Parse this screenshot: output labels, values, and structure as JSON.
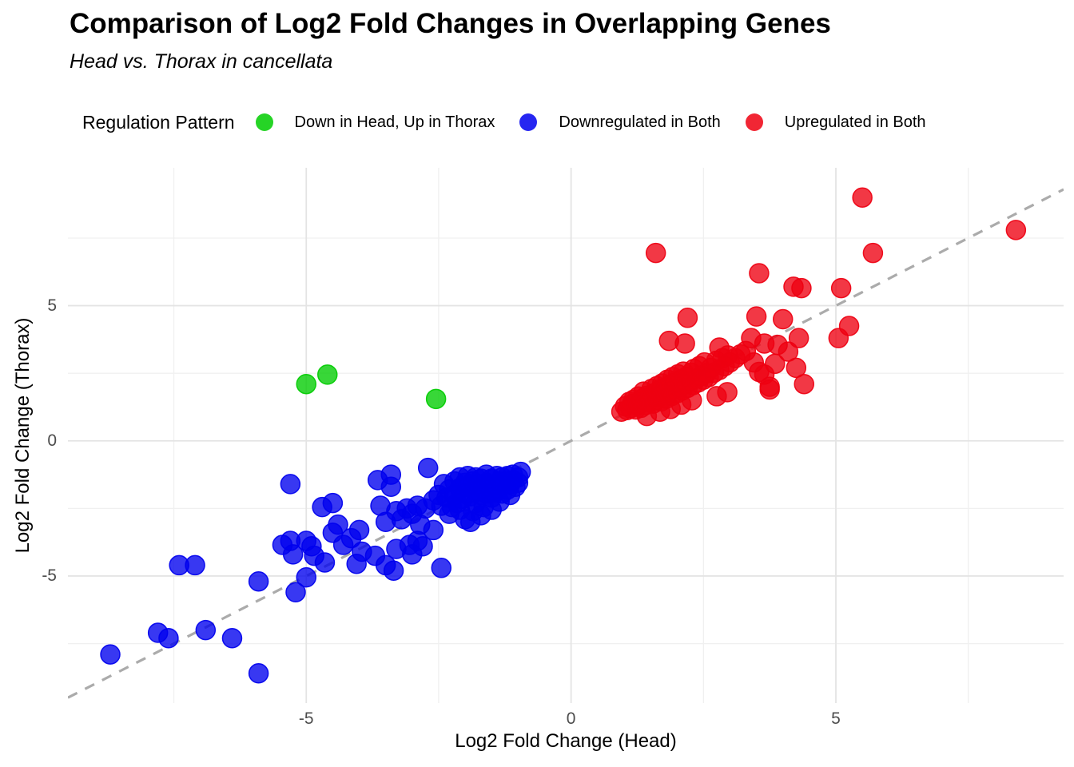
{
  "chart_data": {
    "type": "scatter",
    "title": "Comparison of Log2 Fold Changes in Overlapping Genes",
    "subtitle": "Head vs. Thorax in cancellata",
    "legend_title": "Regulation Pattern",
    "legend_position": "top",
    "grid": "on",
    "background": "#FFFFFF",
    "x_axis": {
      "title": "Log2 Fold Change (Head)",
      "range": [
        -9.5,
        9.3
      ],
      "ticks": [
        {
          "value": -5,
          "label": "-5"
        },
        {
          "value": 0,
          "label": "0"
        },
        {
          "value": 5,
          "label": "5"
        }
      ],
      "minor_gridlines": [
        -7.5,
        -2.5,
        2.5,
        7.5
      ]
    },
    "y_axis": {
      "title": "Log2 Fold Change (Thorax)",
      "range": [
        -9.7,
        10.1
      ],
      "ticks": [
        {
          "value": 5,
          "label": "5"
        },
        {
          "value": 0,
          "label": "0"
        },
        {
          "value": -5,
          "label": "-5"
        }
      ],
      "minor_gridlines": [
        -7.5,
        -2.5,
        2.5,
        7.5
      ]
    },
    "reference_line": {
      "type": "identity y=x",
      "style": "dashed",
      "color": "#ABABAB"
    },
    "point_radius": 12,
    "series": [
      {
        "id": "green",
        "name": "Down in Head, Up in Thorax",
        "color": "#00CC00",
        "points": [
          [
            -5.0,
            2.1
          ],
          [
            -4.6,
            2.45
          ],
          [
            -2.55,
            1.55
          ]
        ]
      },
      {
        "id": "blue",
        "name": "Downregulated in Both",
        "color": "#0000EE",
        "points": [
          [
            -8.7,
            -7.9
          ],
          [
            -7.8,
            -7.1
          ],
          [
            -7.6,
            -7.3
          ],
          [
            -6.9,
            -7.0
          ],
          [
            -6.4,
            -7.3
          ],
          [
            -7.4,
            -4.6
          ],
          [
            -7.1,
            -4.6
          ],
          [
            -5.9,
            -5.2
          ],
          [
            -5.9,
            -8.6
          ],
          [
            -5.3,
            -1.6
          ],
          [
            -5.2,
            -5.6
          ],
          [
            -5.0,
            -5.05
          ],
          [
            -2.45,
            -4.7
          ],
          [
            -5.45,
            -3.85
          ],
          [
            -5.3,
            -3.7
          ],
          [
            -5.25,
            -4.2
          ],
          [
            -5.0,
            -3.7
          ],
          [
            -4.9,
            -3.9
          ],
          [
            -4.85,
            -4.25
          ],
          [
            -4.65,
            -4.5
          ],
          [
            -4.7,
            -2.45
          ],
          [
            -4.5,
            -2.3
          ],
          [
            -4.4,
            -3.1
          ],
          [
            -4.5,
            -3.4
          ],
          [
            -4.15,
            -3.6
          ],
          [
            -4.3,
            -3.85
          ],
          [
            -4.0,
            -3.3
          ],
          [
            -3.95,
            -4.1
          ],
          [
            -3.7,
            -4.25
          ],
          [
            -4.05,
            -4.55
          ],
          [
            -3.5,
            -4.6
          ],
          [
            -3.35,
            -4.8
          ],
          [
            -3.3,
            -4.0
          ],
          [
            -3.05,
            -3.85
          ],
          [
            -2.9,
            -3.7
          ],
          [
            -2.8,
            -3.9
          ],
          [
            -3.0,
            -4.2
          ],
          [
            -2.6,
            -3.3
          ],
          [
            -2.85,
            -3.1
          ],
          [
            -3.5,
            -3.0
          ],
          [
            -3.6,
            -2.4
          ],
          [
            -3.65,
            -1.45
          ],
          [
            -3.4,
            -1.25
          ],
          [
            -3.4,
            -1.7
          ],
          [
            -3.2,
            -2.9
          ],
          [
            -3.3,
            -2.6
          ],
          [
            -3.1,
            -2.5
          ],
          [
            -3.0,
            -2.7
          ],
          [
            -2.9,
            -2.4
          ],
          [
            -2.75,
            -2.5
          ],
          [
            -2.7,
            -1.0
          ],
          [
            -2.6,
            -2.2
          ],
          [
            -2.5,
            -2.0
          ],
          [
            -2.45,
            -2.4
          ],
          [
            -2.4,
            -1.6
          ],
          [
            -2.35,
            -2.1
          ],
          [
            -2.3,
            -1.8
          ],
          [
            -2.25,
            -2.45
          ],
          [
            -2.2,
            -1.5
          ],
          [
            -2.2,
            -2.0
          ],
          [
            -2.15,
            -2.3
          ],
          [
            -2.1,
            -1.35
          ],
          [
            -2.1,
            -1.75
          ],
          [
            -2.05,
            -2.15
          ],
          [
            -2.0,
            -1.55
          ],
          [
            -2.0,
            -1.95
          ],
          [
            -2.0,
            -2.9
          ],
          [
            -1.95,
            -1.3
          ],
          [
            -1.95,
            -1.7
          ],
          [
            -1.9,
            -2.05
          ],
          [
            -1.85,
            -1.5
          ],
          [
            -1.85,
            -2.6
          ],
          [
            -1.8,
            -1.35
          ],
          [
            -1.8,
            -1.85
          ],
          [
            -1.8,
            -2.3
          ],
          [
            -1.75,
            -1.6
          ],
          [
            -1.7,
            -1.4
          ],
          [
            -1.7,
            -2.0
          ],
          [
            -1.65,
            -1.75
          ],
          [
            -1.65,
            -2.45
          ],
          [
            -1.6,
            -1.25
          ],
          [
            -1.6,
            -1.55
          ],
          [
            -1.6,
            -1.95
          ],
          [
            -1.55,
            -1.7
          ],
          [
            -1.5,
            -1.4
          ],
          [
            -1.5,
            -2.1
          ],
          [
            -1.45,
            -1.6
          ],
          [
            -1.45,
            -1.9
          ],
          [
            -1.4,
            -1.3
          ],
          [
            -1.4,
            -1.75
          ],
          [
            -1.35,
            -1.5
          ],
          [
            -1.35,
            -2.25
          ],
          [
            -1.3,
            -1.35
          ],
          [
            -1.3,
            -1.65
          ],
          [
            -1.3,
            -1.95
          ],
          [
            -1.25,
            -1.5
          ],
          [
            -1.2,
            -1.3
          ],
          [
            -1.2,
            -1.8
          ],
          [
            -1.15,
            -1.6
          ],
          [
            -1.1,
            -1.25
          ],
          [
            -1.1,
            -1.45
          ],
          [
            -1.05,
            -1.7
          ],
          [
            -1.0,
            -1.35
          ],
          [
            -1.0,
            -1.55
          ],
          [
            -0.95,
            -1.15
          ],
          [
            -1.15,
            -2.0
          ],
          [
            -1.5,
            -2.55
          ],
          [
            -1.7,
            -2.75
          ],
          [
            -2.3,
            -2.7
          ],
          [
            -1.9,
            -3.0
          ],
          [
            -2.1,
            -2.55
          ]
        ]
      },
      {
        "id": "red",
        "name": "Upregulated in Both",
        "color": "#EE0011",
        "points": [
          [
            1.6,
            6.95
          ],
          [
            3.55,
            6.2
          ],
          [
            4.2,
            5.7
          ],
          [
            4.35,
            5.65
          ],
          [
            5.1,
            5.65
          ],
          [
            5.7,
            6.95
          ],
          [
            5.5,
            9.0
          ],
          [
            8.4,
            7.8
          ],
          [
            2.2,
            4.55
          ],
          [
            3.5,
            4.6
          ],
          [
            4.0,
            4.5
          ],
          [
            5.25,
            4.25
          ],
          [
            5.05,
            3.8
          ],
          [
            4.3,
            3.8
          ],
          [
            4.1,
            3.3
          ],
          [
            3.9,
            3.55
          ],
          [
            3.65,
            3.6
          ],
          [
            3.85,
            2.85
          ],
          [
            4.25,
            2.7
          ],
          [
            3.65,
            2.45
          ],
          [
            4.4,
            2.1
          ],
          [
            3.75,
            1.9
          ],
          [
            3.4,
            3.8
          ],
          [
            2.8,
            3.45
          ],
          [
            1.85,
            3.7
          ],
          [
            2.15,
            3.6
          ],
          [
            2.75,
            1.65
          ],
          [
            3.45,
            2.9
          ],
          [
            3.55,
            2.55
          ],
          [
            3.75,
            2.0
          ],
          [
            2.95,
            1.8
          ],
          [
            0.95,
            1.08
          ],
          [
            1.02,
            1.28
          ],
          [
            1.06,
            1.14
          ],
          [
            1.1,
            1.44
          ],
          [
            1.12,
            1.2
          ],
          [
            1.15,
            1.36
          ],
          [
            1.18,
            1.52
          ],
          [
            1.22,
            1.16
          ],
          [
            1.25,
            1.3
          ],
          [
            1.27,
            1.64
          ],
          [
            1.3,
            1.46
          ],
          [
            1.32,
            1.22
          ],
          [
            1.35,
            1.56
          ],
          [
            1.37,
            1.82
          ],
          [
            1.4,
            1.32
          ],
          [
            1.42,
            1.66
          ],
          [
            1.45,
            1.44
          ],
          [
            1.43,
            0.92
          ],
          [
            1.5,
            1.62
          ],
          [
            1.52,
            1.92
          ],
          [
            1.55,
            1.38
          ],
          [
            1.57,
            1.76
          ],
          [
            1.6,
            1.5
          ],
          [
            1.62,
            2.02
          ],
          [
            1.65,
            1.64
          ],
          [
            1.67,
            1.88
          ],
          [
            1.7,
            1.46
          ],
          [
            1.72,
            2.12
          ],
          [
            1.75,
            1.72
          ],
          [
            1.77,
            1.96
          ],
          [
            1.8,
            1.56
          ],
          [
            1.82,
            2.26
          ],
          [
            1.85,
            1.8
          ],
          [
            1.87,
            2.06
          ],
          [
            1.9,
            1.66
          ],
          [
            1.92,
            2.36
          ],
          [
            1.95,
            1.9
          ],
          [
            1.97,
            2.16
          ],
          [
            2.0,
            1.76
          ],
          [
            2.02,
            2.46
          ],
          [
            2.05,
            2.0
          ],
          [
            2.07,
            2.26
          ],
          [
            2.1,
            1.86
          ],
          [
            2.12,
            2.56
          ],
          [
            2.15,
            2.1
          ],
          [
            2.17,
            2.36
          ],
          [
            2.2,
            1.96
          ],
          [
            2.24,
            2.2
          ],
          [
            2.27,
            2.52
          ],
          [
            2.3,
            2.06
          ],
          [
            2.32,
            2.66
          ],
          [
            2.36,
            2.3
          ],
          [
            2.4,
            2.16
          ],
          [
            2.42,
            2.76
          ],
          [
            2.46,
            2.4
          ],
          [
            2.5,
            2.26
          ],
          [
            2.52,
            2.9
          ],
          [
            2.56,
            2.5
          ],
          [
            2.6,
            2.36
          ],
          [
            2.64,
            2.7
          ],
          [
            2.7,
            2.52
          ],
          [
            2.74,
            2.96
          ],
          [
            2.8,
            2.62
          ],
          [
            2.86,
            3.06
          ],
          [
            2.9,
            2.76
          ],
          [
            2.96,
            3.16
          ],
          [
            3.0,
            2.9
          ],
          [
            3.1,
            3.06
          ],
          [
            3.2,
            3.2
          ],
          [
            3.3,
            3.32
          ],
          [
            1.88,
            1.18
          ],
          [
            2.08,
            1.34
          ],
          [
            2.28,
            1.5
          ],
          [
            1.68,
            1.08
          ]
        ]
      }
    ]
  }
}
